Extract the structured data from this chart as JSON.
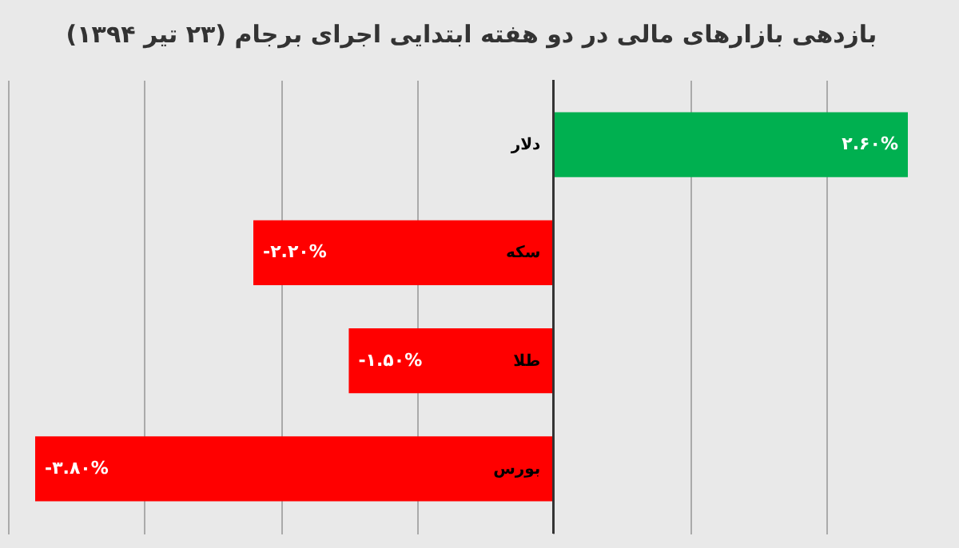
{
  "chart_data": {
    "type": "bar",
    "orientation": "horizontal",
    "title": "بازدهی بازارهای مالی در دو هفته ابتدایی اجرای برجام (۲۳ تیر ۱۳۹۴)",
    "categories": [
      "دلار",
      "سکه",
      "طلا",
      "بورس"
    ],
    "values": [
      2.6,
      -2.2,
      -1.5,
      -3.8
    ],
    "colors": [
      "#00b050",
      "#ff0000",
      "#ff0000",
      "#ff0000"
    ],
    "value_labels": [
      "۲.۶۰%",
      "-۲.۲۰%",
      "-۱.۵۰%",
      "-۳.۸۰%"
    ],
    "xticks": [
      {
        "value": -4,
        "label": null
      },
      {
        "value": -3,
        "label": null
      },
      {
        "value": -2,
        "label": null
      },
      {
        "value": -1,
        "label": null
      },
      {
        "value": 0,
        "label": null
      },
      {
        "value": 1,
        "label": null
      },
      {
        "value": 2,
        "label": null
      }
    ],
    "grid": "x",
    "tick_labels": false
  }
}
